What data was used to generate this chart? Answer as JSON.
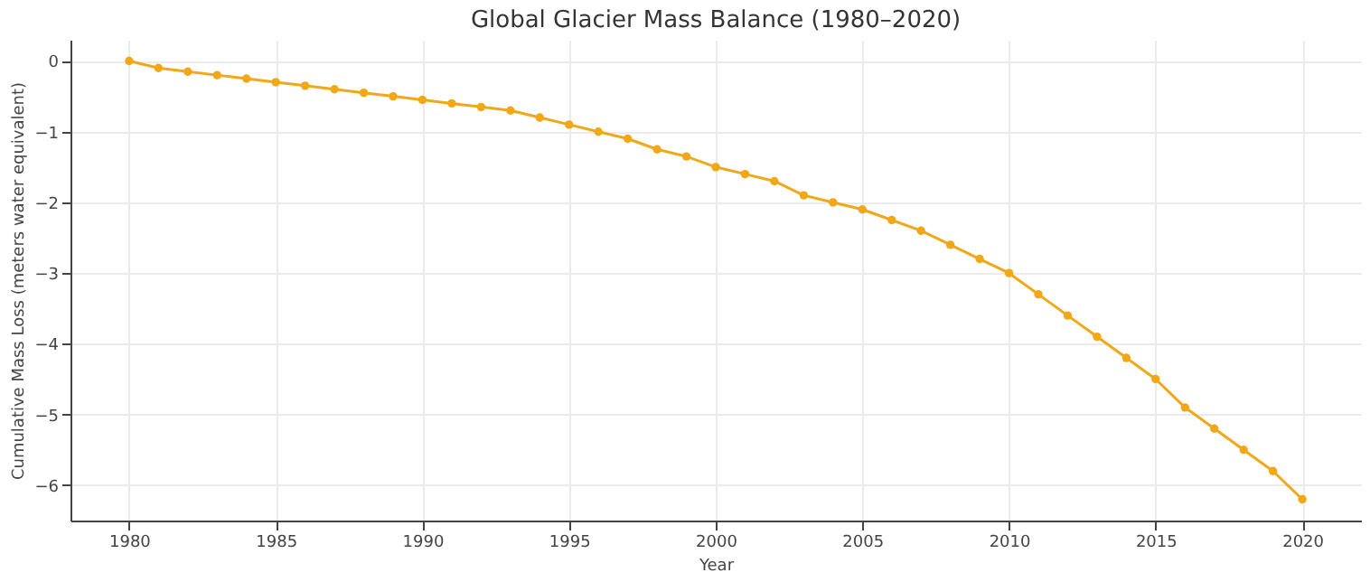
{
  "chart_data": {
    "type": "line",
    "title": "Global Glacier Mass Balance (1980–2020)",
    "xlabel": "Year",
    "ylabel": "Cumulative Mass Loss (meters water equivalent)",
    "x": [
      1980,
      1981,
      1982,
      1983,
      1984,
      1985,
      1986,
      1987,
      1988,
      1989,
      1990,
      1991,
      1992,
      1993,
      1994,
      1995,
      1996,
      1997,
      1998,
      1999,
      2000,
      2001,
      2002,
      2003,
      2004,
      2005,
      2006,
      2007,
      2008,
      2009,
      2010,
      2011,
      2012,
      2013,
      2014,
      2015,
      2016,
      2017,
      2018,
      2019,
      2020
    ],
    "series": [
      {
        "color": "#f0a818",
        "values": [
          0,
          -0.1,
          -0.15,
          -0.2,
          -0.25,
          -0.3,
          -0.35,
          -0.4,
          -0.45,
          -0.5,
          -0.55,
          -0.6,
          -0.65,
          -0.7,
          -0.8,
          -0.9,
          -1.0,
          -1.1,
          -1.25,
          -1.35,
          -1.5,
          -1.6,
          -1.7,
          -1.9,
          -2.0,
          -2.1,
          -2.25,
          -2.4,
          -2.6,
          -2.8,
          -3.0,
          -3.3,
          -3.6,
          -3.9,
          -4.2,
          -4.5,
          -4.9,
          -5.2,
          -5.5,
          -5.8,
          -6.2
        ]
      }
    ],
    "xlim": [
      1978,
      2022
    ],
    "xticks": [
      1980,
      1985,
      1990,
      1995,
      2000,
      2005,
      2010,
      2015,
      2020
    ],
    "ylim": [
      -6.5,
      0.3
    ],
    "yticks": [
      -6,
      -5,
      -4,
      -3,
      -2,
      -1,
      0
    ],
    "grid": true,
    "marker": "circle",
    "line_style": "solid",
    "legend": false
  }
}
